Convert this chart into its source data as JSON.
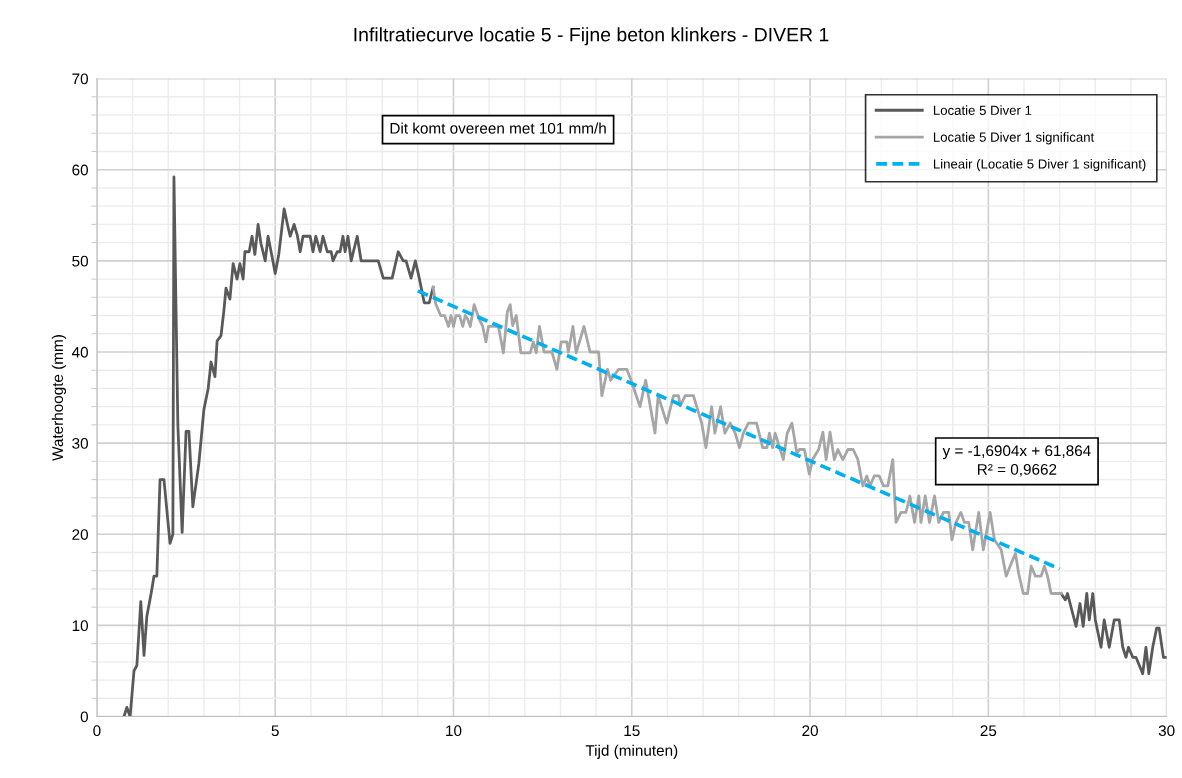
{
  "chart_data": {
    "type": "line",
    "title": "Infiltratiecurve locatie 5 - Fijne beton klinkers - DIVER 1",
    "xlabel": "Tijd (minuten)",
    "ylabel": "Waterhoogte (mm)",
    "xlim": [
      0,
      30
    ],
    "xticks": [
      0,
      5,
      10,
      15,
      20,
      25,
      30
    ],
    "ylim": [
      0,
      70
    ],
    "yticks": [
      0,
      10,
      20,
      30,
      40,
      50,
      60,
      70
    ],
    "grid": true,
    "legend": "top right",
    "marker": "none",
    "annotations": [
      "Dit komt overeen met 101 mm/h",
      "y = -1,6904x + 61,864\nR² = 0,9662"
    ],
    "series": [
      {
        "name": "Locatie 5 Diver 1",
        "color": "#595959",
        "line_style": "solid",
        "x": [
          0.76,
          0.84,
          0.93,
          1.04,
          1.12,
          1.23,
          1.32,
          1.4,
          1.52,
          1.6,
          1.68,
          1.77,
          1.88,
          2.05,
          2.13,
          2.16,
          2.27,
          2.39,
          2.5,
          2.58,
          2.69,
          2.86,
          3.0,
          3.12,
          3.2,
          3.31,
          3.37,
          3.48,
          3.56,
          3.62,
          3.73,
          3.82,
          3.93,
          4.01,
          4.1,
          4.15,
          4.27,
          4.35,
          4.43,
          4.52,
          4.6,
          4.72,
          4.8,
          4.91,
          5.0,
          5.1,
          5.25,
          5.36,
          5.42,
          5.53,
          5.62,
          5.7,
          5.78,
          5.98,
          6.06,
          6.14,
          6.26,
          6.34,
          6.46,
          6.57,
          6.62,
          6.74,
          6.82,
          6.9,
          6.96,
          7.04,
          7.13,
          7.3,
          7.41,
          7.89,
          8.03,
          8.28,
          8.45,
          8.59,
          8.67,
          8.81,
          8.93,
          9.04,
          9.18,
          9.32,
          9.43,
          18.0,
          27.04,
          27.16,
          27.22,
          27.46,
          27.57,
          27.66,
          27.76,
          27.83,
          27.93,
          28.0,
          28.16,
          28.25,
          28.39,
          28.53,
          28.67,
          28.77,
          28.86,
          28.93,
          29.05,
          29.14,
          29.33,
          29.42,
          29.5,
          29.61,
          29.72,
          29.79,
          29.91,
          30.0
        ],
        "values": [
          0,
          1,
          0,
          5,
          5.6,
          12.6,
          6.7,
          11,
          13.5,
          15.4,
          15.4,
          26,
          26,
          19,
          20,
          59.2,
          32,
          20.2,
          31.3,
          31.3,
          23,
          27.8,
          33.7,
          36,
          38.9,
          37.3,
          41.2,
          41.8,
          44.5,
          47,
          45.8,
          49.7,
          48,
          49.7,
          48,
          51,
          51,
          52.7,
          50.7,
          54,
          51.9,
          50,
          52.7,
          50.5,
          48.6,
          50.7,
          55.7,
          53.7,
          52.7,
          54,
          52.8,
          51,
          52.7,
          52.7,
          51,
          52.7,
          51,
          52.7,
          51,
          51,
          50,
          51,
          51,
          52.7,
          51,
          52.7,
          50,
          52.7,
          50,
          50,
          48.1,
          48.1,
          51,
          50,
          50,
          48.1,
          50,
          48.1,
          45.4,
          45.4,
          47.1,
          null,
          13.5,
          12.8,
          13.5,
          9.9,
          12.4,
          9.9,
          13.5,
          10.6,
          13.5,
          10.6,
          7.6,
          10.6,
          7.6,
          10.6,
          10.6,
          7.6,
          6.5,
          7.6,
          6.5,
          6.5,
          4.7,
          7.6,
          4.7,
          7.6,
          9.7,
          9.7,
          6.5,
          6.5
        ]
      },
      {
        "name": "Locatie 5 Diver 1 significant",
        "color": "#a6a6a6",
        "line_style": "solid",
        "x": [
          9.43,
          9.5,
          9.64,
          9.75,
          9.86,
          9.93,
          10.0,
          10.07,
          10.17,
          10.26,
          10.33,
          10.4,
          10.47,
          10.58,
          10.72,
          10.82,
          10.91,
          10.98,
          11.26,
          11.4,
          11.51,
          11.59,
          11.66,
          11.76,
          11.89,
          12.15,
          12.24,
          12.32,
          12.41,
          12.54,
          12.76,
          12.9,
          13.02,
          13.18,
          13.22,
          13.35,
          13.44,
          13.66,
          13.83,
          14.07,
          14.16,
          14.32,
          14.41,
          14.63,
          14.86,
          14.98,
          15.23,
          15.39,
          15.65,
          15.74,
          15.98,
          16.17,
          16.31,
          16.36,
          16.5,
          16.73,
          16.96,
          17.08,
          17.24,
          17.33,
          17.49,
          17.61,
          17.76,
          17.9,
          18.02,
          18.13,
          18.27,
          18.5,
          18.67,
          18.79,
          18.86,
          18.95,
          19.02,
          19.25,
          19.36,
          19.49,
          19.63,
          19.7,
          19.84,
          19.98,
          20.07,
          20.24,
          20.36,
          20.45,
          20.56,
          20.68,
          20.78,
          20.92,
          21.06,
          21.21,
          21.34,
          21.48,
          21.59,
          21.68,
          21.8,
          21.94,
          22.06,
          22.18,
          22.32,
          22.41,
          22.55,
          22.69,
          22.8,
          22.93,
          23.05,
          23.11,
          23.23,
          23.35,
          23.49,
          23.61,
          23.74,
          23.89,
          23.98,
          24.09,
          24.23,
          24.33,
          24.45,
          24.56,
          24.73,
          24.86,
          25.05,
          25.17,
          25.36,
          25.5,
          25.61,
          25.76,
          25.85,
          25.98,
          26.1,
          26.2,
          26.32,
          26.48,
          26.57,
          26.66,
          26.76,
          27.04
        ],
        "values": [
          47.1,
          45.3,
          44.0,
          44.0,
          42.8,
          44.0,
          42.8,
          44.0,
          44.0,
          42.8,
          44.0,
          43.6,
          42.8,
          45.2,
          43.6,
          42.8,
          41.1,
          42.8,
          42.8,
          39.9,
          44.4,
          45.2,
          42.9,
          44.0,
          39.9,
          39.9,
          41.1,
          39.9,
          42.8,
          40.0,
          40.0,
          38.1,
          41.1,
          41.1,
          40.0,
          42.8,
          39.9,
          42.8,
          40.0,
          40.0,
          35.2,
          38.1,
          36.9,
          38.1,
          38.1,
          36.9,
          34.0,
          36.9,
          31.1,
          35.2,
          32.2,
          35.2,
          35.2,
          34.1,
          35.2,
          35.2,
          32.2,
          29.5,
          34.0,
          31.1,
          34.0,
          31.1,
          32.2,
          31.1,
          29.5,
          31.1,
          32.2,
          32.2,
          29.5,
          29.5,
          31.1,
          29.5,
          31.1,
          28.2,
          31.1,
          32.2,
          28.9,
          29.3,
          29.3,
          26.6,
          28.2,
          29.3,
          31.2,
          28.2,
          31.2,
          28.2,
          29.3,
          28.2,
          29.3,
          29.3,
          28.2,
          25.3,
          26.4,
          25.3,
          26.4,
          26.4,
          25.3,
          25.3,
          28.2,
          21.3,
          22.4,
          22.4,
          24.2,
          21.3,
          24.2,
          21.3,
          24.2,
          21.3,
          24.2,
          21.3,
          22.4,
          22.4,
          19.4,
          21.3,
          22.4,
          21.3,
          21.3,
          18.3,
          22.4,
          18.3,
          22.4,
          19.4,
          18.3,
          15.4,
          16.5,
          17.9,
          15.7,
          13.5,
          13.5,
          16.5,
          15.4,
          15.4,
          16.5,
          15.4,
          13.5,
          13.5
        ]
      },
      {
        "name": "Lineair (Locatie 5 Diver 1 significant)",
        "color": "#00b0f0",
        "line_style": "dashed",
        "x": [
          9.0,
          27.0
        ],
        "values": [
          46.7,
          16.2
        ]
      }
    ]
  }
}
